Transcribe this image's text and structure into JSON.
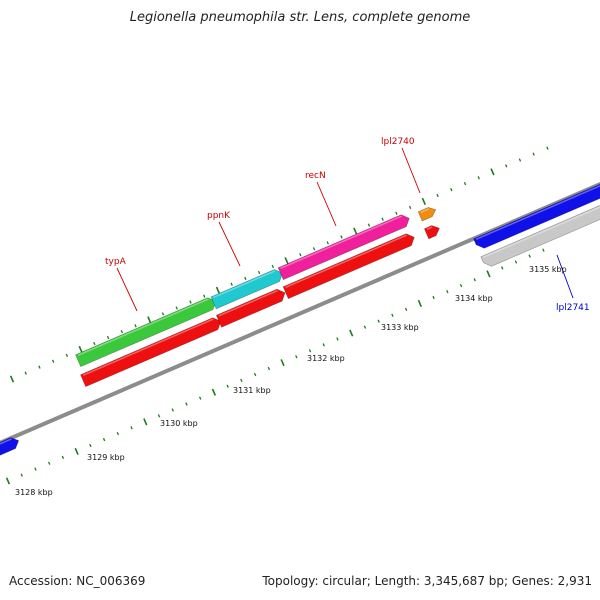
{
  "title": "Legionella pneumophila str. Lens, complete genome",
  "footer": {
    "accession": "Accession: NC_006369",
    "stats": "Topology: circular; Length: 3,345,687 bp; Genes: 2,931"
  },
  "scale_labels": [
    "3128 kbp",
    "3129 kbp",
    "3130 kbp",
    "3131 kbp",
    "3132 kbp",
    "3133 kbp",
    "3134 kbp",
    "3135 kbp"
  ],
  "gene_labels": {
    "typA": "typA",
    "ppnK": "ppnK",
    "recN": "recN",
    "lpl2740": "lpl2740",
    "lpl2741": "lpl2741"
  },
  "colors": {
    "typA": "#3cc83c",
    "ppnK": "#20c8d0",
    "recN": "#f0209c",
    "lpl2740": "#f08c10",
    "lpl2741": "#1010e8",
    "cds": "#ee1010",
    "gray_feature": "#c8c8c8",
    "backbone": "#8c8c8c",
    "tick": "#1e7a1e",
    "label_red": "#cc0000",
    "label_blue": "#0000cc"
  },
  "icons": [
    "genome-backbone-line",
    "gene-arrow"
  ]
}
